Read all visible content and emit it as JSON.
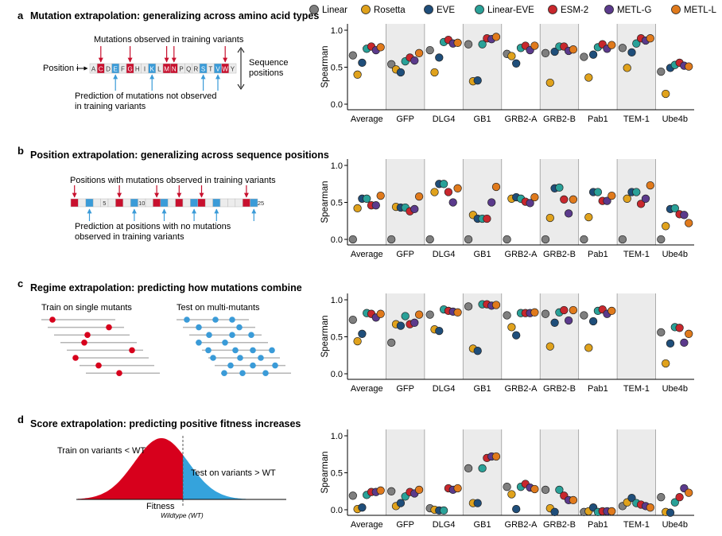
{
  "legend": {
    "items": [
      {
        "name": "Linear",
        "color": "#7f7f7f"
      },
      {
        "name": "Rosetta",
        "color": "#e0a21c"
      },
      {
        "name": "EVE",
        "color": "#1f4e7a"
      },
      {
        "name": "Linear-EVE",
        "color": "#2aa198"
      },
      {
        "name": "ESM-2",
        "color": "#c8272d"
      },
      {
        "name": "METL-G",
        "color": "#5b3a8c"
      },
      {
        "name": "METL-L",
        "color": "#e07a1c"
      }
    ]
  },
  "panels": [
    {
      "letter": "a",
      "title": "Mutation extrapolation: generalizing across amino acid types",
      "labels": {
        "observed": "Mutations observed in training variants",
        "position": "Position i",
        "sequence": "Sequence positions",
        "prediction": "Prediction of mutations not observed in training variants"
      },
      "aa_letters": [
        "A",
        "C",
        "D",
        "E",
        "F",
        "G",
        "H",
        "I",
        "K",
        "L",
        "M",
        "N",
        "P",
        "Q",
        "R",
        "S",
        "T",
        "V",
        "W",
        "Y"
      ]
    },
    {
      "letter": "b",
      "title": "Position extrapolation: generalizing across sequence positions",
      "labels": {
        "observed": "Positions with mutations observed in training variants",
        "prediction": "Prediction at positions with no mutations observed in training variants"
      },
      "seq_numbers": [
        "5",
        "10",
        "15",
        "20",
        "25"
      ]
    },
    {
      "letter": "c",
      "title": "Regime extrapolation: predicting how mutations combine",
      "labels": {
        "train": "Train on single mutants",
        "test": "Test on multi-mutants"
      }
    },
    {
      "letter": "d",
      "title": "Score extrapolation: predicting positive fitness increases",
      "labels": {
        "train": "Train on variants < WT",
        "test": "Test on variants > WT",
        "fitness": "Fitness",
        "wildtype": "Wildtype (WT)"
      }
    }
  ],
  "chart_data": [
    {
      "type": "scatter",
      "panel": "a",
      "ylabel": "Spearman",
      "ylim": [
        0,
        1
      ],
      "yticks": [
        "0.0",
        "0.5",
        "1.0"
      ],
      "categories": [
        "Average",
        "GFP",
        "DLG4",
        "GB1",
        "GRB2-A",
        "GRB2-B",
        "Pab1",
        "TEM-1",
        "Ube4b"
      ],
      "series": [
        {
          "name": "Linear",
          "values": [
            0.66,
            0.54,
            0.73,
            0.81,
            0.68,
            0.69,
            0.64,
            0.76,
            0.44
          ]
        },
        {
          "name": "Rosetta",
          "values": [
            0.4,
            0.47,
            0.43,
            0.31,
            0.65,
            0.29,
            0.36,
            0.49,
            0.14
          ]
        },
        {
          "name": "EVE",
          "values": [
            0.56,
            0.43,
            0.63,
            0.32,
            0.55,
            0.71,
            0.67,
            0.7,
            0.49
          ]
        },
        {
          "name": "Linear-EVE",
          "values": [
            0.75,
            0.58,
            0.84,
            0.81,
            0.76,
            0.78,
            0.77,
            0.82,
            0.53
          ]
        },
        {
          "name": "ESM-2",
          "values": [
            0.78,
            0.63,
            0.87,
            0.89,
            0.79,
            0.78,
            0.81,
            0.89,
            0.56
          ]
        },
        {
          "name": "METL-G",
          "values": [
            0.73,
            0.59,
            0.82,
            0.88,
            0.73,
            0.72,
            0.75,
            0.86,
            0.52
          ]
        },
        {
          "name": "METL-L",
          "values": [
            0.77,
            0.69,
            0.83,
            0.91,
            0.79,
            0.74,
            0.8,
            0.89,
            0.51
          ]
        }
      ]
    },
    {
      "type": "scatter",
      "panel": "b",
      "ylabel": "Spearman",
      "ylim": [
        0,
        1
      ],
      "yticks": [
        "0.0",
        "0.5",
        "1.0"
      ],
      "categories": [
        "Average",
        "GFP",
        "DLG4",
        "GB1",
        "GRB2-A",
        "GRB2-B",
        "Pab1",
        "TEM-1",
        "Ube4b"
      ],
      "series": [
        {
          "name": "Linear",
          "values": [
            0.0,
            0.0,
            0.0,
            0.0,
            0.0,
            0.0,
            0.0,
            0.0,
            0.0
          ]
        },
        {
          "name": "Rosetta",
          "values": [
            0.42,
            0.44,
            0.64,
            0.33,
            0.55,
            0.29,
            0.3,
            0.55,
            0.18
          ]
        },
        {
          "name": "EVE",
          "values": [
            0.55,
            0.43,
            0.75,
            0.28,
            0.57,
            0.69,
            0.64,
            0.64,
            0.41
          ]
        },
        {
          "name": "Linear-EVE",
          "values": [
            0.55,
            0.43,
            0.75,
            0.28,
            0.55,
            0.7,
            0.64,
            0.64,
            0.42
          ]
        },
        {
          "name": "ESM-2",
          "values": [
            0.46,
            0.38,
            0.64,
            0.28,
            0.51,
            0.54,
            0.52,
            0.48,
            0.34
          ]
        },
        {
          "name": "METL-G",
          "values": [
            0.46,
            0.41,
            0.5,
            0.5,
            0.49,
            0.35,
            0.52,
            0.55,
            0.33
          ]
        },
        {
          "name": "METL-L",
          "values": [
            0.59,
            0.58,
            0.69,
            0.71,
            0.57,
            0.54,
            0.59,
            0.73,
            0.22
          ]
        }
      ]
    },
    {
      "type": "scatter",
      "panel": "c",
      "ylabel": "Spearman",
      "ylim": [
        0,
        1
      ],
      "yticks": [
        "0.0",
        "0.5",
        "1.0"
      ],
      "categories": [
        "Average",
        "GFP",
        "DLG4",
        "GB1",
        "GRB2-A",
        "GRB2-B",
        "Pab1",
        "TEM-1",
        "Ube4b"
      ],
      "series": [
        {
          "name": "Linear",
          "values": [
            0.73,
            0.42,
            0.8,
            0.91,
            0.79,
            0.81,
            0.79,
            null,
            0.56
          ]
        },
        {
          "name": "Rosetta",
          "values": [
            0.44,
            0.67,
            0.6,
            0.34,
            0.63,
            0.37,
            0.35,
            null,
            0.14
          ]
        },
        {
          "name": "EVE",
          "values": [
            0.54,
            0.65,
            0.58,
            0.31,
            0.52,
            0.69,
            0.71,
            null,
            0.41
          ]
        },
        {
          "name": "Linear-EVE",
          "values": [
            0.82,
            0.78,
            0.87,
            0.94,
            0.82,
            0.83,
            0.85,
            null,
            0.63
          ]
        },
        {
          "name": "ESM-2",
          "values": [
            0.81,
            0.67,
            0.85,
            0.94,
            0.82,
            0.86,
            0.87,
            null,
            0.62
          ]
        },
        {
          "name": "METL-G",
          "values": [
            0.76,
            0.69,
            0.84,
            0.92,
            0.82,
            0.72,
            0.81,
            null,
            0.42
          ]
        },
        {
          "name": "METL-L",
          "values": [
            0.81,
            0.8,
            0.83,
            0.93,
            0.83,
            0.86,
            0.85,
            null,
            0.54
          ]
        }
      ]
    },
    {
      "type": "scatter",
      "panel": "d",
      "ylabel": "Spearman",
      "ylim": [
        0,
        1
      ],
      "yticks": [
        "0.0",
        "0.5",
        "1.0"
      ],
      "categories": [
        "Average",
        "GFP",
        "DLG4",
        "GB1",
        "GRB2-A",
        "GRB2-B",
        "Pab1",
        "TEM-1",
        "Ube4b"
      ],
      "series": [
        {
          "name": "Linear",
          "values": [
            0.19,
            0.25,
            0.02,
            0.56,
            0.31,
            0.27,
            -0.03,
            0.05,
            0.17
          ]
        },
        {
          "name": "Rosetta",
          "values": [
            0.01,
            0.05,
            0.0,
            0.09,
            0.21,
            0.02,
            -0.02,
            0.1,
            -0.03
          ]
        },
        {
          "name": "EVE",
          "values": [
            0.03,
            0.09,
            -0.01,
            0.09,
            0.01,
            -0.03,
            0.03,
            0.16,
            -0.04
          ]
        },
        {
          "name": "Linear-EVE",
          "values": [
            0.2,
            0.18,
            -0.01,
            0.56,
            0.31,
            0.27,
            -0.03,
            0.09,
            0.1
          ]
        },
        {
          "name": "ESM-2",
          "values": [
            0.24,
            0.24,
            0.29,
            0.7,
            0.35,
            0.19,
            -0.02,
            0.07,
            0.17
          ]
        },
        {
          "name": "METL-G",
          "values": [
            0.24,
            0.22,
            0.27,
            0.72,
            0.3,
            0.13,
            -0.02,
            0.05,
            0.29
          ]
        },
        {
          "name": "METL-L",
          "values": [
            0.26,
            0.27,
            0.29,
            0.72,
            0.28,
            0.13,
            -0.02,
            0.03,
            0.23
          ]
        }
      ]
    }
  ]
}
